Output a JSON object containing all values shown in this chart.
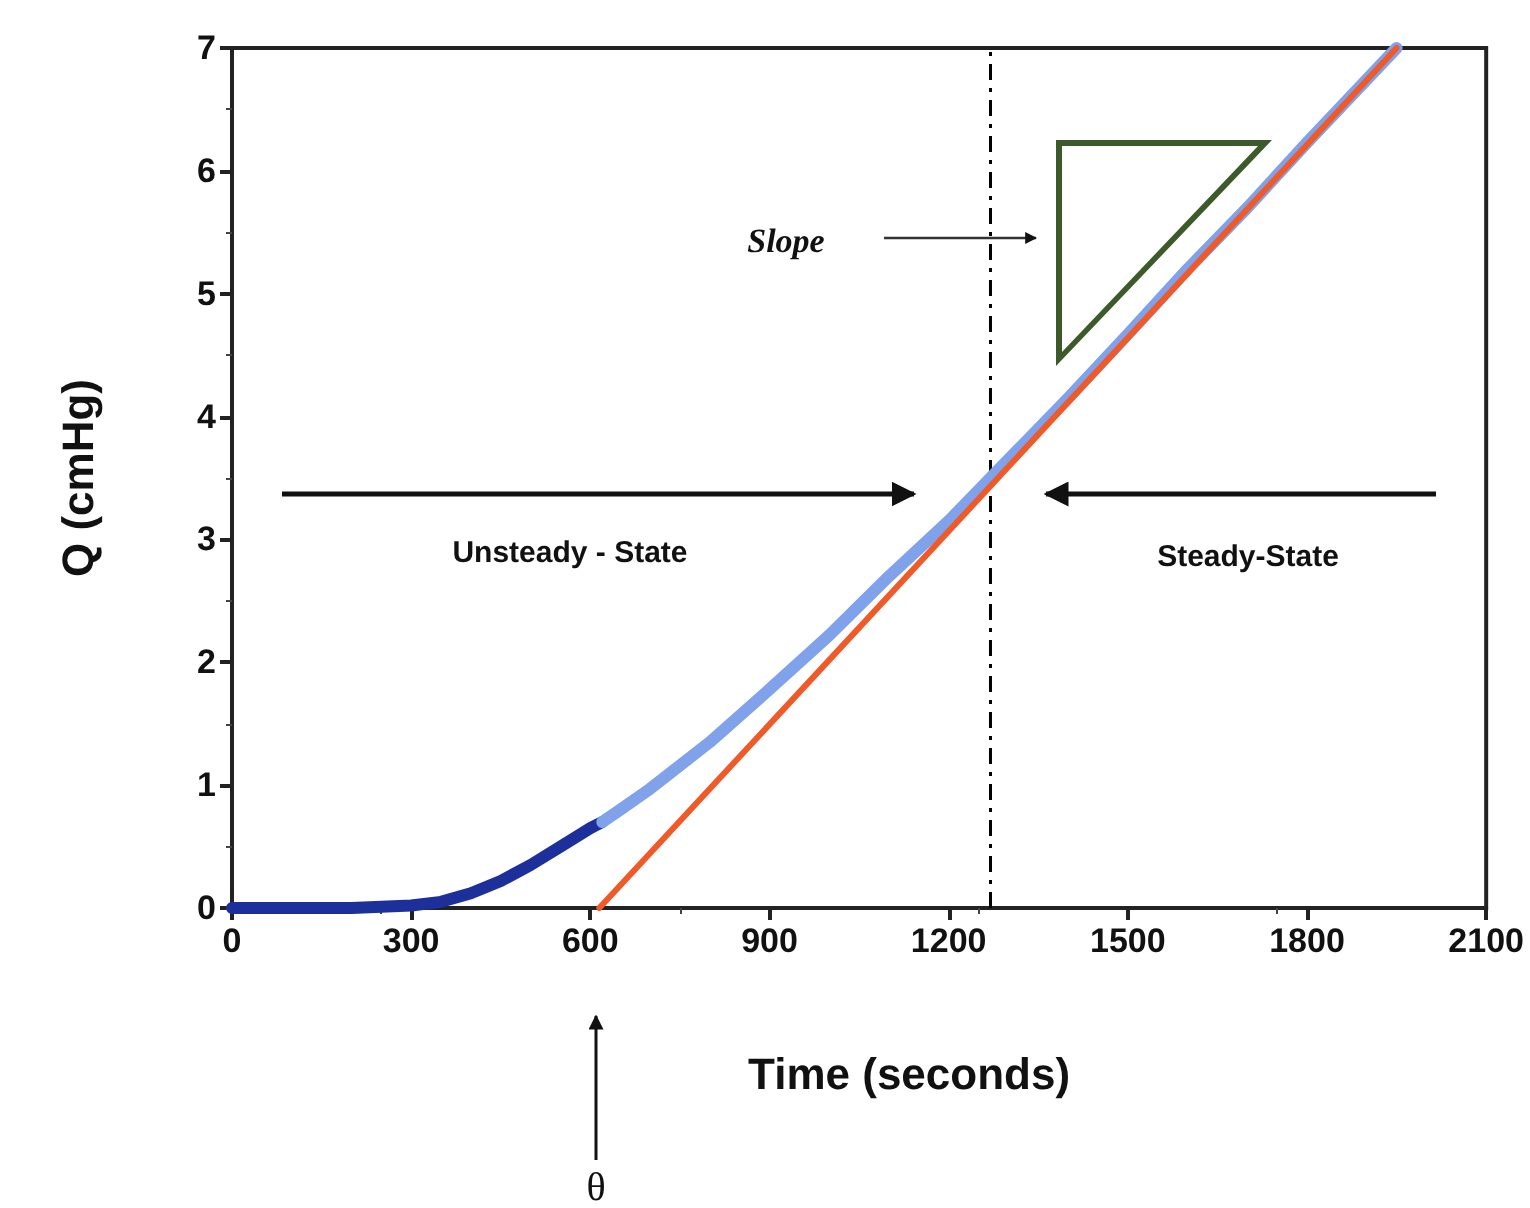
{
  "chart_data": {
    "type": "line",
    "xlabel": "Time (seconds)",
    "ylabel": "Q (cmHg)",
    "xlim": [
      0,
      2100
    ],
    "xticks": [
      0,
      300,
      600,
      900,
      1200,
      1500,
      1800,
      2100
    ],
    "ylim": [
      0,
      7
    ],
    "yticks": [
      0,
      1,
      2,
      3,
      4,
      5,
      6,
      7
    ],
    "grid": false,
    "marker": "none",
    "line_style": "solid",
    "series": [
      {
        "color": "#1c2f9a",
        "x": [
          0,
          100,
          200,
          300,
          350,
          400,
          450,
          500,
          550,
          600,
          620
        ],
        "values": [
          0,
          0,
          0,
          0.02,
          0.05,
          0.12,
          0.22,
          0.35,
          0.5,
          0.65,
          0.7
        ]
      },
      {
        "color": "#7fa2ea",
        "x": [
          620,
          650,
          700,
          800,
          900,
          1000,
          1100,
          1200,
          1270,
          1400,
          1500,
          1600,
          1700,
          1800,
          1950
        ],
        "values": [
          0.7,
          0.8,
          0.97,
          1.35,
          1.78,
          2.22,
          2.7,
          3.15,
          3.5,
          4.15,
          4.67,
          5.2,
          5.7,
          6.23,
          7
        ]
      },
      {
        "color": "#f05a28",
        "x": [
          615,
          1950
        ],
        "values": [
          0,
          7
        ]
      }
    ],
    "ref_lines": [
      {
        "axis": "x",
        "value": 1270,
        "color": "#000000",
        "line_style": "dashed"
      }
    ],
    "annotations": [
      "Slope",
      "Unsteady - State",
      "Steady-State",
      "θ"
    ]
  }
}
